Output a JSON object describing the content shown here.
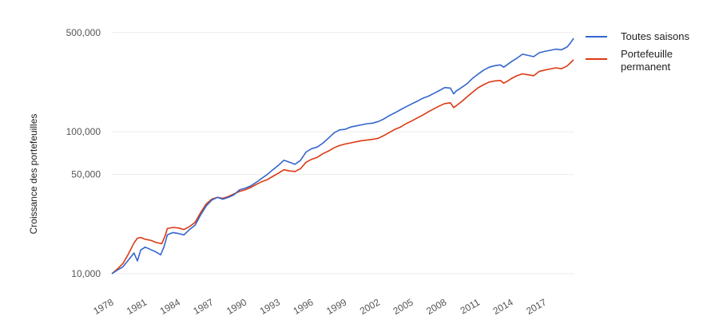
{
  "chart_data": {
    "type": "line",
    "ylabel": "Croissance des portefeuilles",
    "y_scale": "log",
    "ylim": [
      9500,
      560000
    ],
    "xlim": [
      1978.0,
      2019.6
    ],
    "y_ticks": [
      {
        "value": 10000,
        "label": "10,000"
      },
      {
        "value": 50000,
        "label": "50,000"
      },
      {
        "value": 100000,
        "label": "100,000"
      },
      {
        "value": 500000,
        "label": "500,000"
      }
    ],
    "x_ticks": [
      {
        "value": 1978,
        "label": "1978"
      },
      {
        "value": 1981,
        "label": "1981"
      },
      {
        "value": 1984,
        "label": "1984"
      },
      {
        "value": 1987,
        "label": "1987"
      },
      {
        "value": 1990,
        "label": "1990"
      },
      {
        "value": 1993,
        "label": "1993"
      },
      {
        "value": 1996,
        "label": "1996"
      },
      {
        "value": 1999,
        "label": "1999"
      },
      {
        "value": 2002,
        "label": "2002"
      },
      {
        "value": 2005,
        "label": "2005"
      },
      {
        "value": 2008,
        "label": "2008"
      },
      {
        "value": 2011,
        "label": "2011"
      },
      {
        "value": 2014,
        "label": "2014"
      },
      {
        "value": 2017,
        "label": "2017"
      }
    ],
    "legend_position": "top-right",
    "grid": true,
    "series": [
      {
        "name": "Toutes saisons",
        "color": "#3366cc",
        "points": [
          [
            1978.0,
            10000
          ],
          [
            1978.5,
            10600
          ],
          [
            1979.0,
            11200
          ],
          [
            1979.5,
            12500
          ],
          [
            1980.0,
            14000
          ],
          [
            1980.3,
            12300
          ],
          [
            1980.6,
            14700
          ],
          [
            1981.0,
            15400
          ],
          [
            1981.5,
            14800
          ],
          [
            1982.0,
            14200
          ],
          [
            1982.4,
            13600
          ],
          [
            1982.7,
            15500
          ],
          [
            1983.0,
            18800
          ],
          [
            1983.5,
            19500
          ],
          [
            1984.0,
            19200
          ],
          [
            1984.5,
            18800
          ],
          [
            1985.0,
            20500
          ],
          [
            1985.5,
            22000
          ],
          [
            1986.0,
            26000
          ],
          [
            1986.5,
            30000
          ],
          [
            1987.0,
            33000
          ],
          [
            1987.5,
            34500
          ],
          [
            1988.0,
            33500
          ],
          [
            1988.5,
            34500
          ],
          [
            1989.0,
            36000
          ],
          [
            1989.5,
            39000
          ],
          [
            1990.0,
            40000
          ],
          [
            1990.5,
            41500
          ],
          [
            1991.0,
            44000
          ],
          [
            1991.5,
            47000
          ],
          [
            1992.0,
            50000
          ],
          [
            1992.5,
            54000
          ],
          [
            1993.0,
            58000
          ],
          [
            1993.5,
            63000
          ],
          [
            1994.0,
            61000
          ],
          [
            1994.5,
            59000
          ],
          [
            1995.0,
            63000
          ],
          [
            1995.5,
            72000
          ],
          [
            1996.0,
            76000
          ],
          [
            1996.5,
            78000
          ],
          [
            1997.0,
            83000
          ],
          [
            1997.5,
            90000
          ],
          [
            1998.0,
            98000
          ],
          [
            1998.5,
            103000
          ],
          [
            1999.0,
            104000
          ],
          [
            1999.5,
            108000
          ],
          [
            2000.0,
            110000
          ],
          [
            2000.5,
            112000
          ],
          [
            2001.0,
            114000
          ],
          [
            2001.5,
            115000
          ],
          [
            2002.0,
            118000
          ],
          [
            2002.5,
            123000
          ],
          [
            2003.0,
            130000
          ],
          [
            2003.5,
            136000
          ],
          [
            2004.0,
            143000
          ],
          [
            2004.5,
            150000
          ],
          [
            2005.0,
            157000
          ],
          [
            2005.5,
            164000
          ],
          [
            2006.0,
            172000
          ],
          [
            2006.5,
            178000
          ],
          [
            2007.0,
            186000
          ],
          [
            2007.5,
            195000
          ],
          [
            2008.0,
            205000
          ],
          [
            2008.5,
            203000
          ],
          [
            2008.8,
            185000
          ],
          [
            2009.0,
            193000
          ],
          [
            2009.5,
            205000
          ],
          [
            2010.0,
            218000
          ],
          [
            2010.5,
            238000
          ],
          [
            2011.0,
            255000
          ],
          [
            2011.5,
            272000
          ],
          [
            2012.0,
            285000
          ],
          [
            2012.5,
            292000
          ],
          [
            2013.0,
            296000
          ],
          [
            2013.3,
            285000
          ],
          [
            2013.6,
            296000
          ],
          [
            2014.0,
            312000
          ],
          [
            2014.5,
            330000
          ],
          [
            2015.0,
            352000
          ],
          [
            2015.5,
            345000
          ],
          [
            2016.0,
            338000
          ],
          [
            2016.5,
            360000
          ],
          [
            2017.0,
            368000
          ],
          [
            2017.5,
            375000
          ],
          [
            2018.0,
            382000
          ],
          [
            2018.5,
            378000
          ],
          [
            2019.0,
            395000
          ],
          [
            2019.3,
            420000
          ],
          [
            2019.6,
            455000
          ]
        ]
      },
      {
        "name": "Portefeuille permanent",
        "color": "#dc3912",
        "points": [
          [
            1978.0,
            10000
          ],
          [
            1978.5,
            10800
          ],
          [
            1979.0,
            11800
          ],
          [
            1979.5,
            13800
          ],
          [
            1980.0,
            16500
          ],
          [
            1980.3,
            17800
          ],
          [
            1980.6,
            18000
          ],
          [
            1981.0,
            17500
          ],
          [
            1981.5,
            17200
          ],
          [
            1982.0,
            16600
          ],
          [
            1982.5,
            16300
          ],
          [
            1982.8,
            18500
          ],
          [
            1983.0,
            20800
          ],
          [
            1983.5,
            21200
          ],
          [
            1984.0,
            21000
          ],
          [
            1984.5,
            20500
          ],
          [
            1985.0,
            21500
          ],
          [
            1985.5,
            23000
          ],
          [
            1986.0,
            27000
          ],
          [
            1986.5,
            31000
          ],
          [
            1987.0,
            33500
          ],
          [
            1987.5,
            34500
          ],
          [
            1988.0,
            34000
          ],
          [
            1988.5,
            35000
          ],
          [
            1989.0,
            36500
          ],
          [
            1989.5,
            38000
          ],
          [
            1990.0,
            39000
          ],
          [
            1990.5,
            40500
          ],
          [
            1991.0,
            42500
          ],
          [
            1991.5,
            44500
          ],
          [
            1992.0,
            46000
          ],
          [
            1992.5,
            48500
          ],
          [
            1993.0,
            51000
          ],
          [
            1993.5,
            54000
          ],
          [
            1994.0,
            53000
          ],
          [
            1994.5,
            52500
          ],
          [
            1995.0,
            55000
          ],
          [
            1995.5,
            61000
          ],
          [
            1996.0,
            64000
          ],
          [
            1996.5,
            66000
          ],
          [
            1997.0,
            70000
          ],
          [
            1997.5,
            73000
          ],
          [
            1998.0,
            77000
          ],
          [
            1998.5,
            80000
          ],
          [
            1999.0,
            82000
          ],
          [
            1999.5,
            83500
          ],
          [
            2000.0,
            85000
          ],
          [
            2000.5,
            86500
          ],
          [
            2001.0,
            87500
          ],
          [
            2001.5,
            88500
          ],
          [
            2002.0,
            90000
          ],
          [
            2002.5,
            94000
          ],
          [
            2003.0,
            99000
          ],
          [
            2003.5,
            104000
          ],
          [
            2004.0,
            108000
          ],
          [
            2004.5,
            114000
          ],
          [
            2005.0,
            119000
          ],
          [
            2005.5,
            125000
          ],
          [
            2006.0,
            131000
          ],
          [
            2006.5,
            138000
          ],
          [
            2007.0,
            145000
          ],
          [
            2007.5,
            152000
          ],
          [
            2008.0,
            158000
          ],
          [
            2008.5,
            160000
          ],
          [
            2008.8,
            148000
          ],
          [
            2009.0,
            152000
          ],
          [
            2009.5,
            163000
          ],
          [
            2010.0,
            176000
          ],
          [
            2010.5,
            190000
          ],
          [
            2011.0,
            204000
          ],
          [
            2011.5,
            215000
          ],
          [
            2012.0,
            224000
          ],
          [
            2012.5,
            228000
          ],
          [
            2013.0,
            230000
          ],
          [
            2013.3,
            220000
          ],
          [
            2013.6,
            226000
          ],
          [
            2014.0,
            237000
          ],
          [
            2014.5,
            248000
          ],
          [
            2015.0,
            256000
          ],
          [
            2015.5,
            252000
          ],
          [
            2016.0,
            248000
          ],
          [
            2016.5,
            266000
          ],
          [
            2017.0,
            272000
          ],
          [
            2017.5,
            277000
          ],
          [
            2018.0,
            282000
          ],
          [
            2018.5,
            278000
          ],
          [
            2019.0,
            290000
          ],
          [
            2019.3,
            305000
          ],
          [
            2019.6,
            322000
          ]
        ]
      }
    ]
  }
}
